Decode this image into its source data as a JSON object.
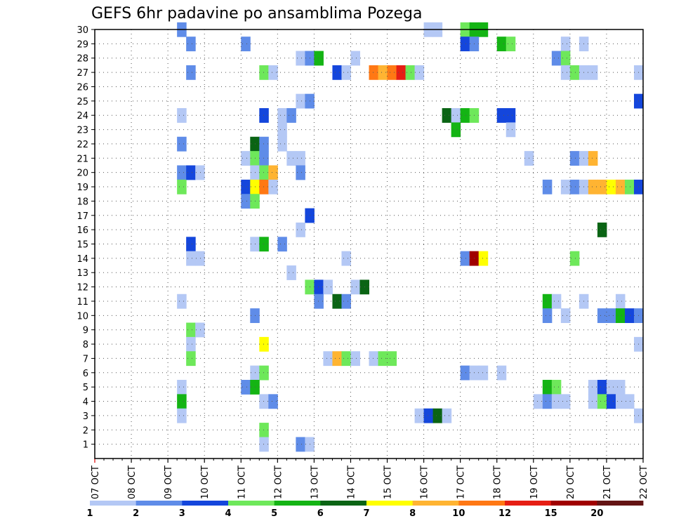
{
  "chart_data": {
    "type": "heatmap",
    "title": "GEFS 6hr padavine po ansamblima Pozega",
    "x_ticks": [
      "07 OCT",
      "08 OCT",
      "09 OCT",
      "10 OCT",
      "11 OCT",
      "12 OCT",
      "13 OCT",
      "14 OCT",
      "15 OCT",
      "16 OCT",
      "17 OCT",
      "18 OCT",
      "19 OCT",
      "20 OCT",
      "21 OCT",
      "22 OCT"
    ],
    "y_ticks": [
      "1",
      "2",
      "3",
      "4",
      "5",
      "6",
      "7",
      "8",
      "9",
      "10",
      "11",
      "12",
      "13",
      "14",
      "15",
      "16",
      "17",
      "18",
      "19",
      "20",
      "21",
      "22",
      "23",
      "24",
      "25",
      "26",
      "27",
      "28",
      "29",
      "30"
    ],
    "time_start": "07 OCT 00Z",
    "time_step_hours": 6,
    "members": 30,
    "grid": "dotted",
    "colorbar": {
      "labels": [
        "1",
        "2",
        "3",
        "4",
        "5",
        "6",
        "7",
        "8",
        "10",
        "12",
        "15",
        "20"
      ],
      "colors": [
        "#b4c8f5",
        "#5f8ce8",
        "#1446dc",
        "#6ee85a",
        "#14b414",
        "#0a6414",
        "#ffff00",
        "#ffb432",
        "#ff7814",
        "#e61e14",
        "#a00000",
        "#641414"
      ]
    },
    "cells": [
      [
        "09 OCT 06Z",
        30,
        2
      ],
      [
        "16 OCT 00Z",
        30,
        1
      ],
      [
        "16 OCT 06Z",
        30,
        1
      ],
      [
        "17 OCT 00Z",
        30,
        4
      ],
      [
        "17 OCT 06Z",
        30,
        5
      ],
      [
        "17 OCT 12Z",
        30,
        5
      ],
      [
        "09 OCT 12Z",
        29,
        2
      ],
      [
        "11 OCT 00Z",
        29,
        2
      ],
      [
        "17 OCT 00Z",
        29,
        3
      ],
      [
        "17 OCT 06Z",
        29,
        2
      ],
      [
        "18 OCT 00Z",
        29,
        5
      ],
      [
        "18 OCT 06Z",
        29,
        4
      ],
      [
        "19 OCT 18Z",
        29,
        1
      ],
      [
        "20 OCT 06Z",
        29,
        1
      ],
      [
        "12 OCT 12Z",
        28,
        1
      ],
      [
        "12 OCT 18Z",
        28,
        2
      ],
      [
        "13 OCT 00Z",
        28,
        5
      ],
      [
        "14 OCT 00Z",
        28,
        1
      ],
      [
        "19 OCT 12Z",
        28,
        2
      ],
      [
        "19 OCT 18Z",
        28,
        4
      ],
      [
        "09 OCT 12Z",
        27,
        2
      ],
      [
        "11 OCT 12Z",
        27,
        4
      ],
      [
        "11 OCT 18Z",
        27,
        1
      ],
      [
        "13 OCT 12Z",
        27,
        3
      ],
      [
        "13 OCT 18Z",
        27,
        1
      ],
      [
        "14 OCT 12Z",
        27,
        10
      ],
      [
        "14 OCT 18Z",
        27,
        8
      ],
      [
        "15 OCT 00Z",
        27,
        10
      ],
      [
        "15 OCT 06Z",
        27,
        12
      ],
      [
        "15 OCT 12Z",
        27,
        4
      ],
      [
        "15 OCT 18Z",
        27,
        1
      ],
      [
        "19 OCT 18Z",
        27,
        1
      ],
      [
        "20 OCT 00Z",
        27,
        4
      ],
      [
        "20 OCT 06Z",
        27,
        1
      ],
      [
        "20 OCT 12Z",
        27,
        1
      ],
      [
        "21 OCT 18Z",
        27,
        1
      ],
      [
        "12 OCT 12Z",
        25,
        1
      ],
      [
        "12 OCT 18Z",
        25,
        2
      ],
      [
        "21 OCT 18Z",
        25,
        3
      ],
      [
        "09 OCT 06Z",
        24,
        1
      ],
      [
        "11 OCT 12Z",
        24,
        3
      ],
      [
        "12 OCT 00Z",
        24,
        1
      ],
      [
        "12 OCT 06Z",
        24,
        2
      ],
      [
        "16 OCT 12Z",
        24,
        6
      ],
      [
        "16 OCT 18Z",
        24,
        1
      ],
      [
        "17 OCT 00Z",
        24,
        5
      ],
      [
        "17 OCT 06Z",
        24,
        4
      ],
      [
        "18 OCT 00Z",
        24,
        3
      ],
      [
        "18 OCT 06Z",
        24,
        3
      ],
      [
        "12 OCT 00Z",
        23,
        1
      ],
      [
        "16 OCT 18Z",
        23,
        5
      ],
      [
        "18 OCT 06Z",
        23,
        1
      ],
      [
        "09 OCT 06Z",
        22,
        2
      ],
      [
        "11 OCT 06Z",
        22,
        6
      ],
      [
        "11 OCT 12Z",
        22,
        2
      ],
      [
        "12 OCT 00Z",
        22,
        1
      ],
      [
        "11 OCT 00Z",
        21,
        1
      ],
      [
        "11 OCT 06Z",
        21,
        4
      ],
      [
        "11 OCT 12Z",
        21,
        2
      ],
      [
        "12 OCT 06Z",
        21,
        1
      ],
      [
        "12 OCT 12Z",
        21,
        1
      ],
      [
        "18 OCT 18Z",
        21,
        1
      ],
      [
        "20 OCT 00Z",
        21,
        2
      ],
      [
        "20 OCT 06Z",
        21,
        1
      ],
      [
        "20 OCT 12Z",
        21,
        8
      ],
      [
        "09 OCT 06Z",
        20,
        2
      ],
      [
        "09 OCT 12Z",
        20,
        3
      ],
      [
        "09 OCT 18Z",
        20,
        1
      ],
      [
        "11 OCT 06Z",
        20,
        1
      ],
      [
        "11 OCT 12Z",
        20,
        4
      ],
      [
        "11 OCT 18Z",
        20,
        8
      ],
      [
        "12 OCT 12Z",
        20,
        2
      ],
      [
        "09 OCT 06Z",
        19,
        4
      ],
      [
        "11 OCT 00Z",
        19,
        3
      ],
      [
        "11 OCT 06Z",
        19,
        7
      ],
      [
        "11 OCT 12Z",
        19,
        10
      ],
      [
        "11 OCT 18Z",
        19,
        1
      ],
      [
        "19 OCT 06Z",
        19,
        2
      ],
      [
        "19 OCT 18Z",
        19,
        1
      ],
      [
        "20 OCT 00Z",
        19,
        2
      ],
      [
        "20 OCT 06Z",
        19,
        1
      ],
      [
        "20 OCT 12Z",
        19,
        8
      ],
      [
        "20 OCT 18Z",
        19,
        8
      ],
      [
        "21 OCT 00Z",
        19,
        7
      ],
      [
        "21 OCT 06Z",
        19,
        8
      ],
      [
        "21 OCT 12Z",
        19,
        4
      ],
      [
        "21 OCT 18Z",
        19,
        3
      ],
      [
        "11 OCT 00Z",
        18,
        2
      ],
      [
        "11 OCT 06Z",
        18,
        4
      ],
      [
        "12 OCT 18Z",
        17,
        3
      ],
      [
        "12 OCT 12Z",
        16,
        1
      ],
      [
        "20 OCT 18Z",
        16,
        6
      ],
      [
        "09 OCT 12Z",
        15,
        3
      ],
      [
        "11 OCT 06Z",
        15,
        1
      ],
      [
        "11 OCT 12Z",
        15,
        5
      ],
      [
        "12 OCT 00Z",
        15,
        2
      ],
      [
        "09 OCT 12Z",
        14,
        1
      ],
      [
        "09 OCT 18Z",
        14,
        1
      ],
      [
        "13 OCT 18Z",
        14,
        1
      ],
      [
        "17 OCT 00Z",
        14,
        2
      ],
      [
        "17 OCT 06Z",
        14,
        15
      ],
      [
        "17 OCT 12Z",
        14,
        7
      ],
      [
        "20 OCT 00Z",
        14,
        4
      ],
      [
        "12 OCT 06Z",
        13,
        1
      ],
      [
        "12 OCT 18Z",
        12,
        4
      ],
      [
        "13 OCT 00Z",
        12,
        3
      ],
      [
        "13 OCT 06Z",
        12,
        1
      ],
      [
        "14 OCT 00Z",
        12,
        1
      ],
      [
        "14 OCT 06Z",
        12,
        6
      ],
      [
        "09 OCT 06Z",
        11,
        1
      ],
      [
        "13 OCT 00Z",
        11,
        2
      ],
      [
        "13 OCT 12Z",
        11,
        6
      ],
      [
        "13 OCT 18Z",
        11,
        2
      ],
      [
        "19 OCT 06Z",
        11,
        5
      ],
      [
        "19 OCT 12Z",
        11,
        1
      ],
      [
        "20 OCT 06Z",
        11,
        1
      ],
      [
        "21 OCT 06Z",
        11,
        1
      ],
      [
        "11 OCT 06Z",
        10,
        2
      ],
      [
        "19 OCT 06Z",
        10,
        2
      ],
      [
        "19 OCT 18Z",
        10,
        1
      ],
      [
        "20 OCT 18Z",
        10,
        2
      ],
      [
        "21 OCT 00Z",
        10,
        2
      ],
      [
        "21 OCT 06Z",
        10,
        5
      ],
      [
        "21 OCT 12Z",
        10,
        3
      ],
      [
        "21 OCT 18Z",
        10,
        2
      ],
      [
        "09 OCT 12Z",
        9,
        4
      ],
      [
        "09 OCT 18Z",
        9,
        1
      ],
      [
        "09 OCT 12Z",
        8,
        1
      ],
      [
        "11 OCT 12Z",
        8,
        7
      ],
      [
        "21 OCT 18Z",
        8,
        1
      ],
      [
        "09 OCT 12Z",
        7,
        4
      ],
      [
        "13 OCT 06Z",
        7,
        1
      ],
      [
        "13 OCT 12Z",
        7,
        8
      ],
      [
        "13 OCT 18Z",
        7,
        4
      ],
      [
        "14 OCT 00Z",
        7,
        1
      ],
      [
        "14 OCT 12Z",
        7,
        1
      ],
      [
        "14 OCT 18Z",
        7,
        4
      ],
      [
        "15 OCT 00Z",
        7,
        4
      ],
      [
        "11 OCT 06Z",
        6,
        1
      ],
      [
        "11 OCT 12Z",
        6,
        4
      ],
      [
        "17 OCT 00Z",
        6,
        2
      ],
      [
        "17 OCT 06Z",
        6,
        1
      ],
      [
        "17 OCT 12Z",
        6,
        1
      ],
      [
        "18 OCT 00Z",
        6,
        1
      ],
      [
        "09 OCT 06Z",
        5,
        1
      ],
      [
        "11 OCT 00Z",
        5,
        2
      ],
      [
        "11 OCT 06Z",
        5,
        5
      ],
      [
        "19 OCT 06Z",
        5,
        5
      ],
      [
        "19 OCT 12Z",
        5,
        4
      ],
      [
        "20 OCT 12Z",
        5,
        1
      ],
      [
        "20 OCT 18Z",
        5,
        3
      ],
      [
        "21 OCT 00Z",
        5,
        1
      ],
      [
        "21 OCT 06Z",
        5,
        1
      ],
      [
        "09 OCT 06Z",
        4,
        5
      ],
      [
        "11 OCT 12Z",
        4,
        1
      ],
      [
        "11 OCT 18Z",
        4,
        2
      ],
      [
        "19 OCT 00Z",
        4,
        1
      ],
      [
        "19 OCT 06Z",
        4,
        2
      ],
      [
        "19 OCT 12Z",
        4,
        1
      ],
      [
        "19 OCT 18Z",
        4,
        1
      ],
      [
        "20 OCT 12Z",
        4,
        1
      ],
      [
        "20 OCT 18Z",
        4,
        4
      ],
      [
        "21 OCT 00Z",
        4,
        3
      ],
      [
        "21 OCT 06Z",
        4,
        1
      ],
      [
        "21 OCT 12Z",
        4,
        1
      ],
      [
        "09 OCT 06Z",
        3,
        1
      ],
      [
        "15 OCT 18Z",
        3,
        1
      ],
      [
        "16 OCT 00Z",
        3,
        3
      ],
      [
        "16 OCT 06Z",
        3,
        6
      ],
      [
        "16 OCT 12Z",
        3,
        1
      ],
      [
        "21 OCT 18Z",
        3,
        1
      ],
      [
        "11 OCT 12Z",
        2,
        4
      ],
      [
        "11 OCT 12Z",
        1,
        1
      ],
      [
        "12 OCT 12Z",
        1,
        2
      ],
      [
        "12 OCT 18Z",
        1,
        1
      ]
    ]
  }
}
